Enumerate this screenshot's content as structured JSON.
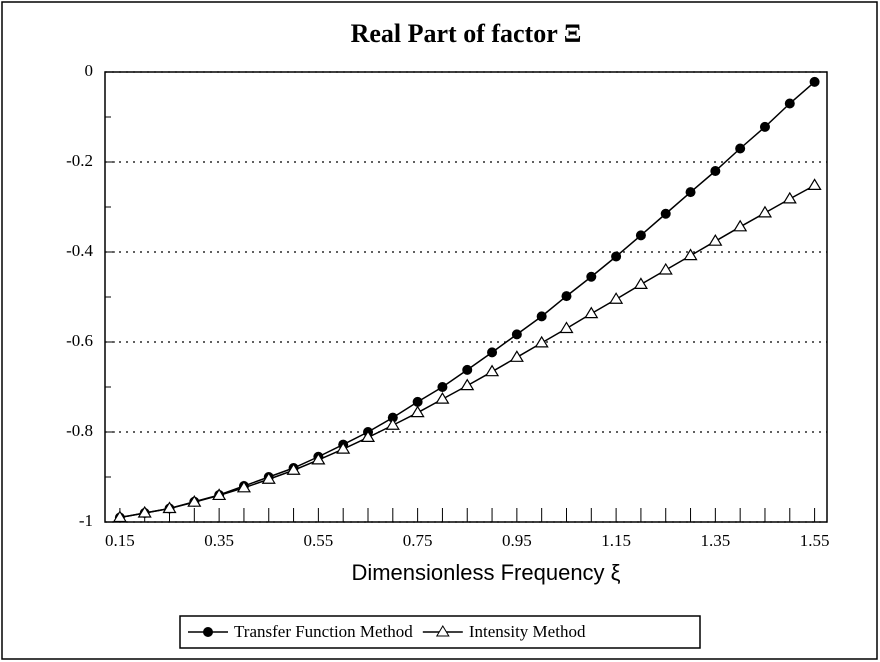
{
  "chart_data": {
    "type": "line",
    "title": "Real Part of factor Ξ",
    "xlabel": "Dimensionless Frequency ξ",
    "x": [
      0.15,
      0.2,
      0.25,
      0.3,
      0.35,
      0.4,
      0.45,
      0.5,
      0.55,
      0.6,
      0.65,
      0.7,
      0.75,
      0.8,
      0.85,
      0.9,
      0.95,
      1.0,
      1.05,
      1.1,
      1.15,
      1.2,
      1.25,
      1.3,
      1.35,
      1.4,
      1.45,
      1.5,
      1.55
    ],
    "series": [
      {
        "name": "Transfer Function Method",
        "color": "#000000",
        "marker": "circle",
        "values": [
          -0.99,
          -0.98,
          -0.97,
          -0.955,
          -0.94,
          -0.92,
          -0.9,
          -0.88,
          -0.855,
          -0.828,
          -0.8,
          -0.768,
          -0.733,
          -0.7,
          -0.662,
          -0.623,
          -0.583,
          -0.543,
          -0.498,
          -0.455,
          -0.41,
          -0.363,
          -0.315,
          -0.267,
          -0.22,
          -0.17,
          -0.122,
          -0.07,
          -0.022
        ]
      },
      {
        "name": "Intensity Method",
        "color": "#000000",
        "marker": "triangle",
        "values": [
          -0.99,
          -0.98,
          -0.97,
          -0.956,
          -0.941,
          -0.924,
          -0.905,
          -0.885,
          -0.862,
          -0.838,
          -0.812,
          -0.785,
          -0.757,
          -0.727,
          -0.697,
          -0.666,
          -0.634,
          -0.602,
          -0.57,
          -0.537,
          -0.505,
          -0.472,
          -0.44,
          -0.408,
          -0.376,
          -0.344,
          -0.313,
          -0.282,
          -0.252
        ]
      }
    ],
    "xlim": [
      0.12,
      1.575
    ],
    "xticks": [
      0.15,
      0.35,
      0.55,
      0.75,
      0.95,
      1.15,
      1.35,
      1.55
    ],
    "ylim": [
      -1,
      0
    ],
    "yticks": [
      0,
      -0.2,
      -0.4,
      -0.6,
      -0.8,
      -1
    ],
    "grid": true,
    "legend": "bottom"
  }
}
